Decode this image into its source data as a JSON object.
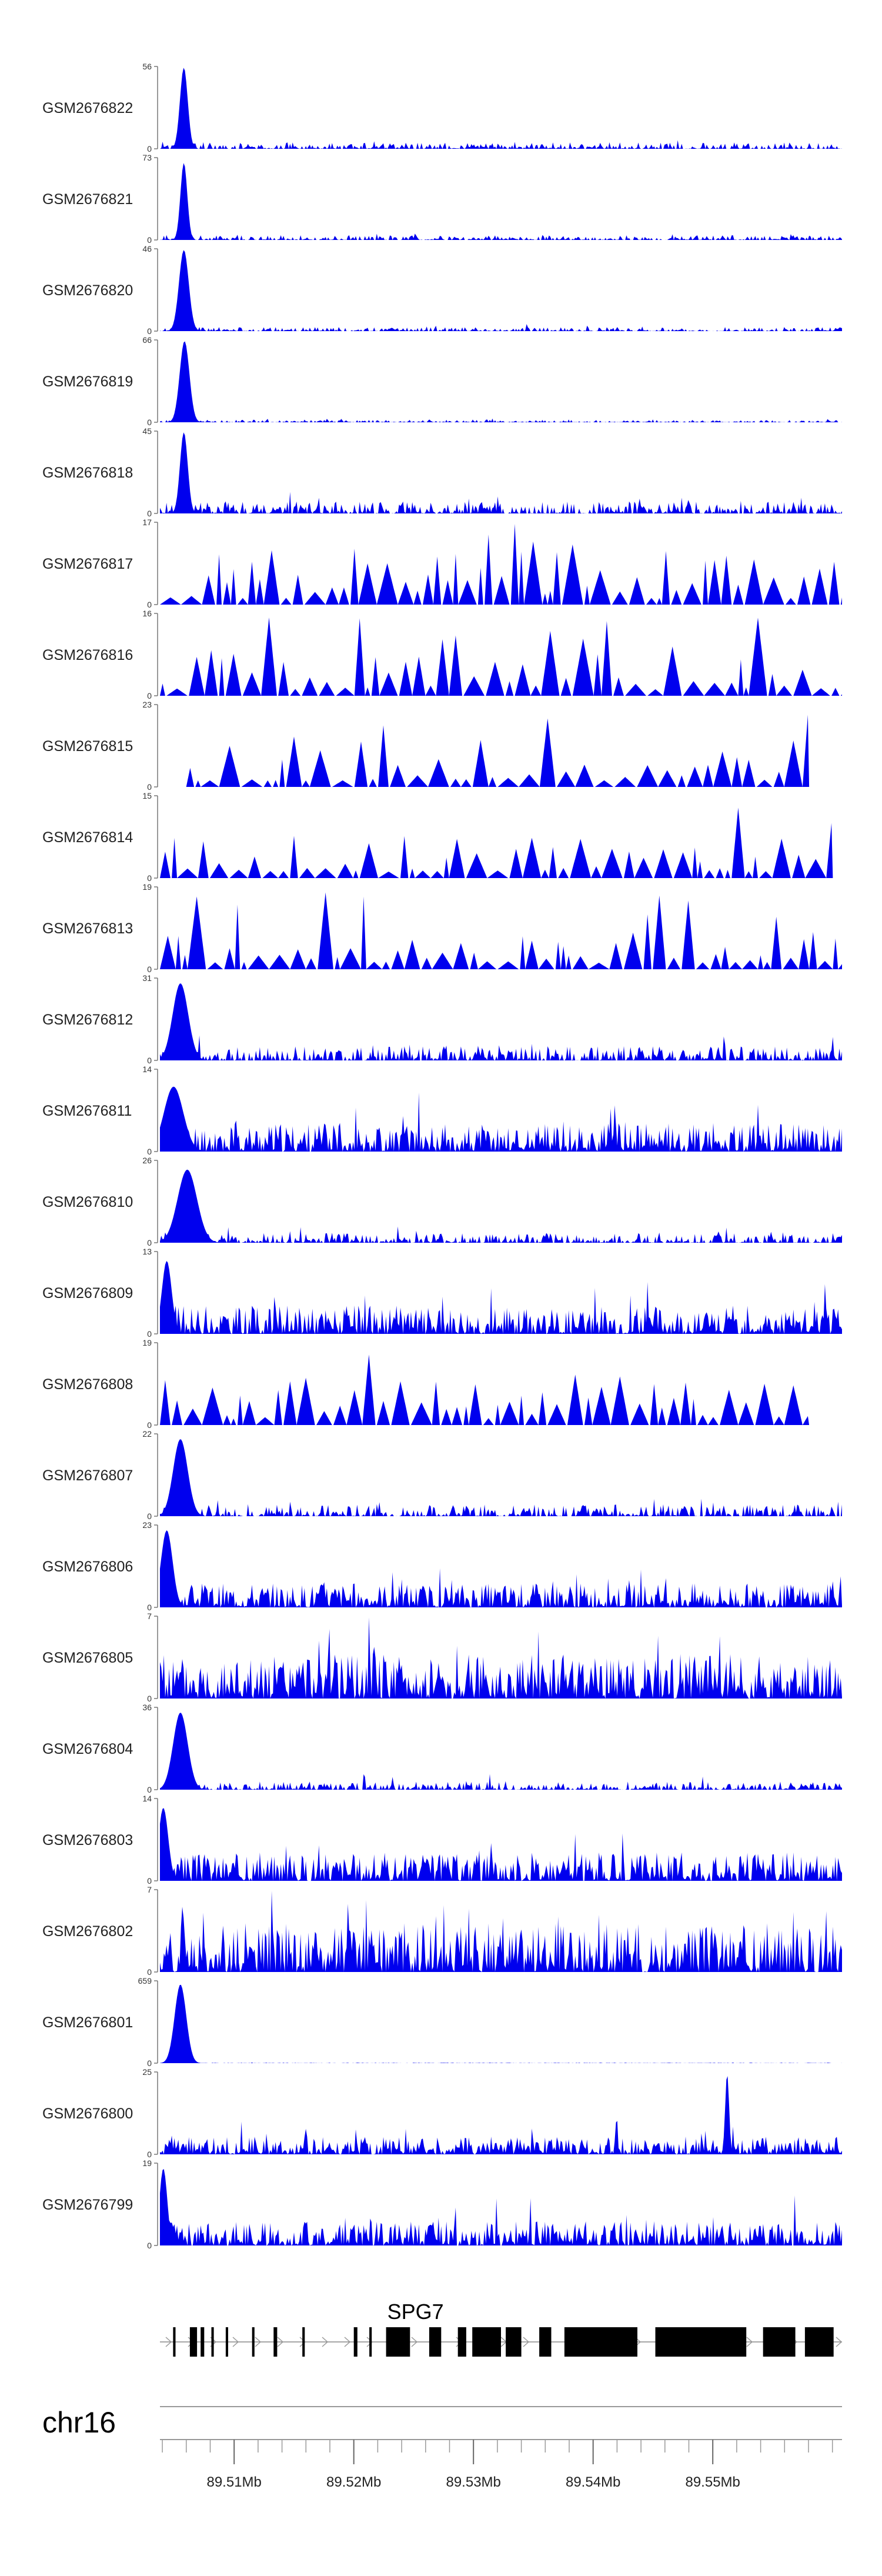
{
  "chart_data": {
    "type": "area",
    "chromosome": "chr16",
    "gene": {
      "name": "SPG7",
      "exons": [
        [
          89.5049,
          89.5051
        ],
        [
          89.5063,
          89.5069
        ],
        [
          89.5072,
          89.5075
        ],
        [
          89.5081,
          89.5083
        ],
        [
          89.5093,
          89.5095
        ],
        [
          89.5115,
          89.5117
        ],
        [
          89.5133,
          89.5136
        ],
        [
          89.5157,
          89.5159
        ],
        [
          89.52,
          89.5203
        ],
        [
          89.5213,
          89.5215
        ],
        [
          89.5227,
          89.5247
        ],
        [
          89.5263,
          89.5273
        ],
        [
          89.5287,
          89.5294
        ],
        [
          89.5299,
          89.5323
        ],
        [
          89.5327,
          89.534
        ],
        [
          89.5355,
          89.5365
        ],
        [
          89.5376,
          89.5437
        ],
        [
          89.5452,
          89.5528
        ],
        [
          89.5542,
          89.5569
        ],
        [
          89.5577,
          89.5601
        ]
      ]
    },
    "genome_axis": {
      "label": "chr16",
      "range": [
        89.5038,
        89.5608
      ],
      "major_ticks": [
        89.51,
        89.52,
        89.53,
        89.54,
        89.55
      ],
      "tick_labels": [
        "89.51Mb",
        "89.52Mb",
        "89.53Mb",
        "89.54Mb",
        "89.55Mb"
      ],
      "minor_step": 0.002
    },
    "series": [
      {
        "name": "GSM2676822",
        "ymax": 56,
        "style": "peak",
        "peak_pos": 0.035,
        "peak_w": 0.008,
        "peak_h": 1.0,
        "base": 0.08,
        "seed": 22,
        "x_end": 1.0
      },
      {
        "name": "GSM2676821",
        "ymax": 73,
        "style": "peak",
        "peak_pos": 0.035,
        "peak_w": 0.007,
        "peak_h": 0.95,
        "base": 0.06,
        "seed": 21,
        "x_end": 1.0
      },
      {
        "name": "GSM2676820",
        "ymax": 46,
        "style": "peak",
        "peak_pos": 0.035,
        "peak_w": 0.01,
        "peak_h": 1.0,
        "base": 0.05,
        "seed": 20,
        "x_end": 1.0
      },
      {
        "name": "GSM2676819",
        "ymax": 66,
        "style": "peak",
        "peak_pos": 0.036,
        "peak_w": 0.01,
        "peak_h": 1.0,
        "base": 0.03,
        "seed": 19,
        "x_end": 1.0
      },
      {
        "name": "GSM2676818",
        "ymax": 45,
        "style": "mixed",
        "peak_pos": 0.035,
        "peak_w": 0.008,
        "peak_h": 1.0,
        "base": 0.15,
        "seed": 18,
        "x_end": 1.0
      },
      {
        "name": "GSM2676817",
        "ymax": 17,
        "style": "sparse",
        "peak_pos": 0.0,
        "peak_w": 0.0,
        "peak_h": 0.0,
        "base": 0.6,
        "seed": 17,
        "x_end": 1.0
      },
      {
        "name": "GSM2676816",
        "ymax": 16,
        "style": "sparse",
        "peak_pos": 0.0,
        "peak_w": 0.0,
        "peak_h": 0.0,
        "base": 0.55,
        "seed": 16,
        "x_end": 1.0
      },
      {
        "name": "GSM2676815",
        "ymax": 23,
        "style": "sparse",
        "peak_pos": 0.0,
        "peak_w": 0.0,
        "peak_h": 0.0,
        "base": 0.5,
        "seed": 15,
        "x_start": 0.04,
        "x_end": 0.95
      },
      {
        "name": "GSM2676814",
        "ymax": 15,
        "style": "sparse",
        "peak_pos": 0.0,
        "peak_w": 0.0,
        "peak_h": 0.0,
        "base": 0.45,
        "seed": 14,
        "x_end": 0.985
      },
      {
        "name": "GSM2676813",
        "ymax": 19,
        "style": "sparse",
        "peak_pos": 0.0,
        "peak_w": 0.0,
        "peak_h": 0.0,
        "base": 0.4,
        "seed": 13,
        "x_end": 1.0
      },
      {
        "name": "GSM2676812",
        "ymax": 31,
        "style": "peak",
        "peak_pos": 0.03,
        "peak_w": 0.016,
        "peak_h": 0.95,
        "base": 0.18,
        "seed": 12,
        "x_end": 1.0
      },
      {
        "name": "GSM2676811",
        "ymax": 14,
        "style": "dense",
        "peak_pos": 0.02,
        "peak_w": 0.02,
        "peak_h": 0.8,
        "base": 0.35,
        "seed": 11,
        "x_end": 1.0
      },
      {
        "name": "GSM2676810",
        "ymax": 26,
        "style": "peak",
        "peak_pos": 0.04,
        "peak_w": 0.02,
        "peak_h": 0.9,
        "base": 0.12,
        "seed": 10,
        "x_end": 1.0
      },
      {
        "name": "GSM2676809",
        "ymax": 13,
        "style": "dense",
        "peak_pos": 0.01,
        "peak_w": 0.01,
        "peak_h": 0.9,
        "base": 0.35,
        "seed": 9,
        "x_end": 1.0
      },
      {
        "name": "GSM2676808",
        "ymax": 19,
        "style": "sparse",
        "peak_pos": 0.0,
        "peak_w": 0.0,
        "peak_h": 0.0,
        "base": 0.55,
        "seed": 8,
        "x_end": 0.95
      },
      {
        "name": "GSM2676807",
        "ymax": 22,
        "style": "peak",
        "peak_pos": 0.03,
        "peak_w": 0.015,
        "peak_h": 0.95,
        "base": 0.15,
        "seed": 7,
        "x_end": 1.0
      },
      {
        "name": "GSM2676806",
        "ymax": 23,
        "style": "dense",
        "peak_pos": 0.01,
        "peak_w": 0.012,
        "peak_h": 0.95,
        "base": 0.3,
        "seed": 6,
        "x_end": 1.0
      },
      {
        "name": "GSM2676805",
        "ymax": 7,
        "style": "dense",
        "peak_pos": 0.0,
        "peak_w": 0.0,
        "peak_h": 0.0,
        "base": 0.55,
        "seed": 5,
        "x_end": 1.0
      },
      {
        "name": "GSM2676804",
        "ymax": 36,
        "style": "peak",
        "peak_pos": 0.03,
        "peak_w": 0.015,
        "peak_h": 0.95,
        "base": 0.1,
        "seed": 4,
        "x_end": 1.0
      },
      {
        "name": "GSM2676803",
        "ymax": 14,
        "style": "dense",
        "peak_pos": 0.005,
        "peak_w": 0.01,
        "peak_h": 0.9,
        "base": 0.35,
        "seed": 3,
        "x_end": 1.0
      },
      {
        "name": "GSM2676802",
        "ymax": 7,
        "style": "dense",
        "peak_pos": 0.0,
        "peak_w": 0.0,
        "peak_h": 0.0,
        "base": 0.6,
        "seed": 2,
        "x_end": 1.0
      },
      {
        "name": "GSM2676801",
        "ymax": 659,
        "style": "peak",
        "peak_pos": 0.03,
        "peak_w": 0.012,
        "peak_h": 0.97,
        "base": 0.005,
        "seed": 1,
        "x_end": 1.0
      },
      {
        "name": "GSM2676800",
        "ymax": 25,
        "style": "dense",
        "peak_pos": 0.83,
        "peak_w": 0.004,
        "peak_h": 1.0,
        "base": 0.22,
        "seed": 100,
        "x_end": 1.0
      },
      {
        "name": "GSM2676799",
        "ymax": 19,
        "style": "dense",
        "peak_pos": 0.005,
        "peak_w": 0.008,
        "peak_h": 0.95,
        "base": 0.3,
        "seed": 99,
        "x_end": 1.0
      }
    ],
    "fill_color": "#0000ee",
    "xlabel": "",
    "ylabel": ""
  }
}
